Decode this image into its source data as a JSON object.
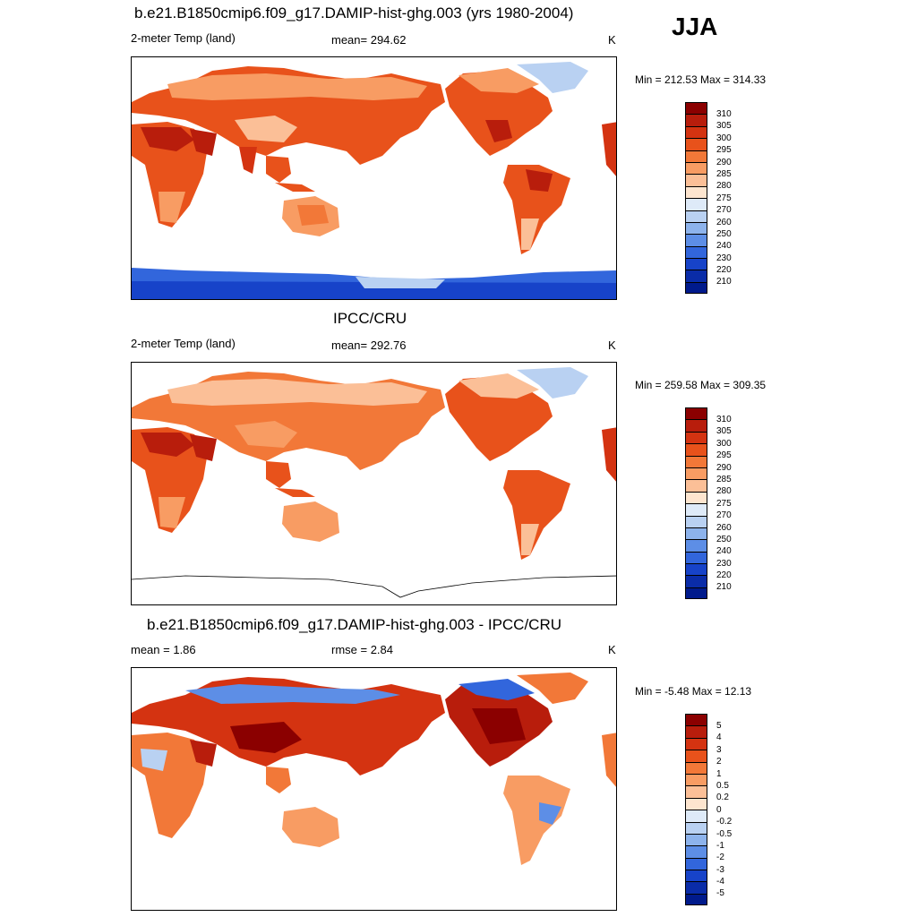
{
  "season": "JJA",
  "panels": [
    {
      "title": "b.e21.B1850cmip6.f09_g17.DAMIP-hist-ghg.003 (yrs 1980-2004)",
      "left_label": "2-meter Temp (land)",
      "center_label": "mean= 294.62",
      "right_label": "K",
      "minmax": "Min = 212.53 Max = 314.33",
      "colorbar": {
        "labels": [
          "310",
          "305",
          "300",
          "295",
          "290",
          "285",
          "280",
          "275",
          "270",
          "260",
          "250",
          "240",
          "230",
          "220",
          "210"
        ],
        "colors": [
          "#8b0000",
          "#b81d0c",
          "#d43311",
          "#e8521b",
          "#f27838",
          "#f89c63",
          "#fbbf97",
          "#fde5cf",
          "#deeaf8",
          "#b9d1f2",
          "#8db3ec",
          "#5d8ee6",
          "#3266dc",
          "#1743c9",
          "#0a2ca8",
          "#001a8c"
        ]
      }
    },
    {
      "title": "IPCC/CRU",
      "left_label": "2-meter Temp (land)",
      "center_label": "mean= 292.76",
      "right_label": "K",
      "minmax": "Min = 259.58 Max = 309.35",
      "colorbar": {
        "labels": [
          "310",
          "305",
          "300",
          "295",
          "290",
          "285",
          "280",
          "275",
          "270",
          "260",
          "250",
          "240",
          "230",
          "220",
          "210"
        ],
        "colors": [
          "#8b0000",
          "#b81d0c",
          "#d43311",
          "#e8521b",
          "#f27838",
          "#f89c63",
          "#fbbf97",
          "#fde5cf",
          "#deeaf8",
          "#b9d1f2",
          "#8db3ec",
          "#5d8ee6",
          "#3266dc",
          "#1743c9",
          "#0a2ca8",
          "#001a8c"
        ]
      }
    },
    {
      "title": "b.e21.B1850cmip6.f09_g17.DAMIP-hist-ghg.003 - IPCC/CRU",
      "left_label": "mean =   1.86",
      "center_label": "rmse =   2.84",
      "right_label": "K",
      "minmax": "Min =  -5.48 Max =  12.13",
      "colorbar": {
        "labels": [
          "5",
          "4",
          "3",
          "2",
          "1",
          "0.5",
          "0.2",
          "0",
          "-0.2",
          "-0.5",
          "-1",
          "-2",
          "-3",
          "-4",
          "-5"
        ],
        "colors": [
          "#8b0000",
          "#b81d0c",
          "#d43311",
          "#e8521b",
          "#f27838",
          "#f89c63",
          "#fbbf97",
          "#fde5cf",
          "#deeaf8",
          "#b9d1f2",
          "#8db3ec",
          "#5d8ee6",
          "#3266dc",
          "#1743c9",
          "#0a2ca8",
          "#001a8c"
        ]
      }
    }
  ]
}
